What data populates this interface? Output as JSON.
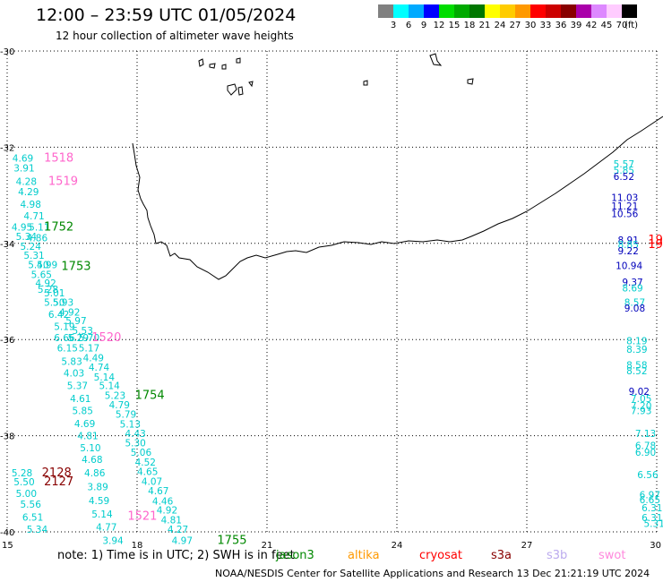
{
  "title": "12:00 – 23:59 UTC 01/05/2024",
  "subtitle": "12 hour collection of altimeter wave heights",
  "scale": {
    "unit": "(ft)",
    "bins": [
      {
        "label": "3",
        "color": "#808080"
      },
      {
        "label": "6",
        "color": "#00ffff"
      },
      {
        "label": "9",
        "color": "#00aaff"
      },
      {
        "label": "12",
        "color": "#0000ff"
      },
      {
        "label": "15",
        "color": "#00dd00"
      },
      {
        "label": "18",
        "color": "#00aa00"
      },
      {
        "label": "21",
        "color": "#007700"
      },
      {
        "label": "24",
        "color": "#ffff00"
      },
      {
        "label": "27",
        "color": "#ffcc00"
      },
      {
        "label": "30",
        "color": "#ff9900"
      },
      {
        "label": "33",
        "color": "#ff0000"
      },
      {
        "label": "36",
        "color": "#cc0000"
      },
      {
        "label": "39",
        "color": "#880000"
      },
      {
        "label": "42",
        "color": "#aa00aa"
      },
      {
        "label": "45",
        "color": "#dd88ff"
      },
      {
        "label": "70",
        "color": "#ffccff"
      },
      {
        "label": "",
        "color": "#000000"
      }
    ]
  },
  "colors": {
    "cyan": "#00cccc",
    "blue": "#0000bb",
    "green": "#008800",
    "pink": "#ff66cc",
    "red": "#ff0000",
    "maroon": "#880000",
    "coast": "#000000"
  },
  "lat_labels": [
    "-30",
    "-32",
    "-34",
    "-36",
    "-38",
    "-40"
  ],
  "lon_labels": [
    "15",
    "18",
    "21",
    "24",
    "27",
    "30"
  ],
  "map_data": {
    "lon_range": [
      15,
      30
    ],
    "lat_range": [
      -30,
      -40
    ],
    "observations": [
      {
        "t": "4.69",
        "lon": 15.12,
        "lat": -32.3,
        "c": "cyan"
      },
      {
        "t": "3.91",
        "lon": 15.15,
        "lat": -32.5,
        "c": "cyan"
      },
      {
        "t": "4.28",
        "lon": 15.2,
        "lat": -32.78,
        "c": "cyan"
      },
      {
        "t": "4.29",
        "lon": 15.25,
        "lat": -33.0,
        "c": "cyan"
      },
      {
        "t": "4.98",
        "lon": 15.3,
        "lat": -33.26,
        "c": "cyan"
      },
      {
        "t": "4.71",
        "lon": 15.38,
        "lat": -33.5,
        "c": "cyan"
      },
      {
        "t": "4.95",
        "lon": 15.1,
        "lat": -33.73,
        "c": "cyan"
      },
      {
        "t": "5.11",
        "lon": 15.5,
        "lat": -33.73,
        "c": "cyan"
      },
      {
        "t": "5.34",
        "lon": 15.2,
        "lat": -33.93,
        "c": "cyan"
      },
      {
        "t": "4.86",
        "lon": 15.45,
        "lat": -33.96,
        "c": "cyan"
      },
      {
        "t": "5.24",
        "lon": 15.3,
        "lat": -34.13,
        "c": "cyan"
      },
      {
        "t": "5.31",
        "lon": 15.38,
        "lat": -34.32,
        "c": "cyan"
      },
      {
        "t": "5.50",
        "lon": 15.48,
        "lat": -34.52,
        "c": "cyan"
      },
      {
        "t": "4.99",
        "lon": 15.68,
        "lat": -34.52,
        "c": "cyan"
      },
      {
        "t": "5.65",
        "lon": 15.55,
        "lat": -34.72,
        "c": "cyan"
      },
      {
        "t": "4.92",
        "lon": 15.65,
        "lat": -34.9,
        "c": "cyan"
      },
      {
        "t": "5.28",
        "lon": 15.7,
        "lat": -35.03,
        "c": "cyan"
      },
      {
        "t": "5.01",
        "lon": 15.85,
        "lat": -35.1,
        "c": "cyan"
      },
      {
        "t": "5.50",
        "lon": 15.85,
        "lat": -35.3,
        "c": "cyan"
      },
      {
        "t": "5.93",
        "lon": 16.05,
        "lat": -35.3,
        "c": "cyan"
      },
      {
        "t": "6.42",
        "lon": 15.95,
        "lat": -35.55,
        "c": "cyan"
      },
      {
        "t": "4.92",
        "lon": 16.2,
        "lat": -35.5,
        "c": "cyan"
      },
      {
        "t": "5.97",
        "lon": 16.35,
        "lat": -35.68,
        "c": "cyan"
      },
      {
        "t": "5.19",
        "lon": 16.08,
        "lat": -35.8,
        "c": "cyan"
      },
      {
        "t": "5.53",
        "lon": 16.5,
        "lat": -35.88,
        "c": "cyan"
      },
      {
        "t": "6.66",
        "lon": 16.08,
        "lat": -36.03,
        "c": "cyan"
      },
      {
        "t": "5.29",
        "lon": 16.4,
        "lat": -36.03,
        "c": "cyan"
      },
      {
        "t": "5.70",
        "lon": 16.65,
        "lat": -36.03,
        "c": "cyan"
      },
      {
        "t": "6.15",
        "lon": 16.15,
        "lat": -36.25,
        "c": "cyan"
      },
      {
        "t": "5.17",
        "lon": 16.65,
        "lat": -36.25,
        "c": "cyan"
      },
      {
        "t": "4.49",
        "lon": 16.75,
        "lat": -36.45,
        "c": "cyan"
      },
      {
        "t": "5.83",
        "lon": 16.25,
        "lat": -36.53,
        "c": "cyan"
      },
      {
        "t": "4.74",
        "lon": 16.88,
        "lat": -36.65,
        "c": "cyan"
      },
      {
        "t": "4.03",
        "lon": 16.3,
        "lat": -36.77,
        "c": "cyan"
      },
      {
        "t": "5.14",
        "lon": 17.0,
        "lat": -36.85,
        "c": "cyan"
      },
      {
        "t": "5.37",
        "lon": 16.38,
        "lat": -37.03,
        "c": "cyan"
      },
      {
        "t": "5.14",
        "lon": 17.12,
        "lat": -37.03,
        "c": "cyan"
      },
      {
        "t": "5.23",
        "lon": 17.25,
        "lat": -37.23,
        "c": "cyan"
      },
      {
        "t": "4.61",
        "lon": 16.45,
        "lat": -37.3,
        "c": "cyan"
      },
      {
        "t": "4.79",
        "lon": 17.35,
        "lat": -37.43,
        "c": "cyan"
      },
      {
        "t": "5.85",
        "lon": 16.5,
        "lat": -37.55,
        "c": "cyan"
      },
      {
        "t": "5.79",
        "lon": 17.5,
        "lat": -37.63,
        "c": "cyan"
      },
      {
        "t": "4.69",
        "lon": 16.55,
        "lat": -37.82,
        "c": "cyan"
      },
      {
        "t": "5.13",
        "lon": 17.6,
        "lat": -37.83,
        "c": "cyan"
      },
      {
        "t": "4.43",
        "lon": 17.72,
        "lat": -38.03,
        "c": "cyan"
      },
      {
        "t": "4.81",
        "lon": 16.62,
        "lat": -38.07,
        "c": "cyan"
      },
      {
        "t": "5.30",
        "lon": 17.72,
        "lat": -38.22,
        "c": "cyan"
      },
      {
        "t": "5.10",
        "lon": 16.68,
        "lat": -38.32,
        "c": "cyan"
      },
      {
        "t": "5.06",
        "lon": 17.85,
        "lat": -38.42,
        "c": "cyan"
      },
      {
        "t": "4.68",
        "lon": 16.72,
        "lat": -38.57,
        "c": "cyan"
      },
      {
        "t": "4.52",
        "lon": 17.95,
        "lat": -38.62,
        "c": "cyan"
      },
      {
        "t": "4.65",
        "lon": 18.0,
        "lat": -38.82,
        "c": "cyan"
      },
      {
        "t": "5.28",
        "lon": 15.1,
        "lat": -38.85,
        "c": "cyan"
      },
      {
        "t": "4.86",
        "lon": 16.78,
        "lat": -38.85,
        "c": "cyan"
      },
      {
        "t": "5.50",
        "lon": 15.15,
        "lat": -39.03,
        "c": "cyan"
      },
      {
        "t": "4.07",
        "lon": 18.1,
        "lat": -39.02,
        "c": "cyan"
      },
      {
        "t": "3.89",
        "lon": 16.85,
        "lat": -39.13,
        "c": "cyan"
      },
      {
        "t": "5.00",
        "lon": 15.2,
        "lat": -39.27,
        "c": "cyan"
      },
      {
        "t": "4.67",
        "lon": 18.25,
        "lat": -39.22,
        "c": "cyan"
      },
      {
        "t": "4.59",
        "lon": 16.88,
        "lat": -39.42,
        "c": "cyan"
      },
      {
        "t": "4.46",
        "lon": 18.35,
        "lat": -39.43,
        "c": "cyan"
      },
      {
        "t": "5.56",
        "lon": 15.3,
        "lat": -39.5,
        "c": "cyan"
      },
      {
        "t": "4.92",
        "lon": 18.45,
        "lat": -39.62,
        "c": "cyan"
      },
      {
        "t": "5.14",
        "lon": 16.95,
        "lat": -39.7,
        "c": "cyan"
      },
      {
        "t": "6.51",
        "lon": 15.35,
        "lat": -39.77,
        "c": "cyan"
      },
      {
        "t": "4.81",
        "lon": 18.55,
        "lat": -39.82,
        "c": "cyan"
      },
      {
        "t": "4.77",
        "lon": 17.05,
        "lat": -39.97,
        "c": "cyan"
      },
      {
        "t": "5.34",
        "lon": 15.45,
        "lat": -40.02,
        "c": "cyan"
      },
      {
        "t": "4.27",
        "lon": 18.7,
        "lat": -40.02,
        "c": "cyan"
      },
      {
        "t": "3.94",
        "lon": 17.2,
        "lat": -40.25,
        "c": "cyan"
      },
      {
        "t": "4.97",
        "lon": 18.8,
        "lat": -40.25,
        "c": "cyan"
      },
      {
        "t": "5.57",
        "lon": 29.0,
        "lat": -32.42,
        "c": "cyan"
      },
      {
        "t": "5.85",
        "lon": 29.0,
        "lat": -32.55,
        "c": "cyan"
      },
      {
        "t": "6.52",
        "lon": 29.0,
        "lat": -32.68,
        "c": "blue"
      },
      {
        "t": "11.03",
        "lon": 28.95,
        "lat": -33.12,
        "c": "blue"
      },
      {
        "t": "11.21",
        "lon": 28.95,
        "lat": -33.3,
        "c": "blue"
      },
      {
        "t": "10.56",
        "lon": 28.95,
        "lat": -33.45,
        "c": "blue"
      },
      {
        "t": "8.91",
        "lon": 29.1,
        "lat": -34.0,
        "c": "blue"
      },
      {
        "t": "8.85",
        "lon": 29.1,
        "lat": -34.1,
        "c": "cyan"
      },
      {
        "t": "9.22",
        "lon": 29.1,
        "lat": -34.23,
        "c": "blue"
      },
      {
        "t": "10.94",
        "lon": 29.05,
        "lat": -34.53,
        "c": "blue"
      },
      {
        "t": "9.37",
        "lon": 29.2,
        "lat": -34.88,
        "c": "blue"
      },
      {
        "t": "8.69",
        "lon": 29.2,
        "lat": -35.0,
        "c": "cyan"
      },
      {
        "t": "8.57",
        "lon": 29.25,
        "lat": -35.3,
        "c": "cyan"
      },
      {
        "t": "9.08",
        "lon": 29.25,
        "lat": -35.42,
        "c": "blue"
      },
      {
        "t": "8.19",
        "lon": 29.3,
        "lat": -36.1,
        "c": "cyan"
      },
      {
        "t": "8.39",
        "lon": 29.3,
        "lat": -36.28,
        "c": "cyan"
      },
      {
        "t": "8.58",
        "lon": 29.3,
        "lat": -36.6,
        "c": "cyan"
      },
      {
        "t": "8.52",
        "lon": 29.3,
        "lat": -36.72,
        "c": "cyan"
      },
      {
        "t": "9.02",
        "lon": 29.35,
        "lat": -37.15,
        "c": "blue"
      },
      {
        "t": "7.05",
        "lon": 29.4,
        "lat": -37.3,
        "c": "cyan"
      },
      {
        "t": "7.20",
        "lon": 29.4,
        "lat": -37.45,
        "c": "cyan"
      },
      {
        "t": "7.93",
        "lon": 29.4,
        "lat": -37.55,
        "c": "cyan"
      },
      {
        "t": "7.13",
        "lon": 29.5,
        "lat": -38.03,
        "c": "cyan"
      },
      {
        "t": "6.78",
        "lon": 29.5,
        "lat": -38.28,
        "c": "cyan"
      },
      {
        "t": "6.90",
        "lon": 29.5,
        "lat": -38.42,
        "c": "cyan"
      },
      {
        "t": "6.56",
        "lon": 29.55,
        "lat": -38.88,
        "c": "cyan"
      },
      {
        "t": "6.97",
        "lon": 29.6,
        "lat": -39.3,
        "c": "cyan"
      },
      {
        "t": "6.65",
        "lon": 29.6,
        "lat": -39.4,
        "c": "cyan"
      },
      {
        "t": "6.31",
        "lon": 29.65,
        "lat": -39.57,
        "c": "cyan"
      },
      {
        "t": "6.31",
        "lon": 29.65,
        "lat": -39.78,
        "c": "cyan"
      },
      {
        "t": "5.31",
        "lon": 29.7,
        "lat": -39.9,
        "c": "cyan"
      }
    ],
    "passes": [
      {
        "t": "1518",
        "lon": 15.85,
        "lat": -32.3,
        "c": "pink"
      },
      {
        "t": "1519",
        "lon": 15.95,
        "lat": -32.78,
        "c": "pink"
      },
      {
        "t": "1752",
        "lon": 15.85,
        "lat": -33.73,
        "c": "green"
      },
      {
        "t": "1753",
        "lon": 16.25,
        "lat": -34.55,
        "c": "green"
      },
      {
        "t": "1520",
        "lon": 16.95,
        "lat": -36.03,
        "c": "pink"
      },
      {
        "t": "1754",
        "lon": 17.95,
        "lat": -37.23,
        "c": "green"
      },
      {
        "t": "2128",
        "lon": 15.8,
        "lat": -38.85,
        "c": "maroon"
      },
      {
        "t": "2127",
        "lon": 15.85,
        "lat": -39.03,
        "c": "maroon"
      },
      {
        "t": "1521",
        "lon": 17.78,
        "lat": -39.75,
        "c": "pink"
      },
      {
        "t": "1755",
        "lon": 19.85,
        "lat": -40.25,
        "c": "green"
      },
      {
        "t": "19",
        "lon": 29.8,
        "lat": -34.0,
        "c": "red"
      },
      {
        "t": "19",
        "lon": 29.8,
        "lat": -34.1,
        "c": "red"
      }
    ]
  },
  "note": "note:  1) Time is in UTC;  2) SWH is in feet",
  "satellites": [
    {
      "name": "jason3",
      "color": "#008800"
    },
    {
      "name": "altika",
      "color": "#ff9900"
    },
    {
      "name": "cryosat",
      "color": "#ff0000"
    },
    {
      "name": "s3a",
      "color": "#880000"
    },
    {
      "name": "s3b",
      "color": "#bbaaee"
    },
    {
      "name": "swot",
      "color": "#ff88dd"
    }
  ],
  "footer": "NOAA/NESDIS Center for Satellite Applications and Research    13 Dec 21:21:19 UTC 2024"
}
